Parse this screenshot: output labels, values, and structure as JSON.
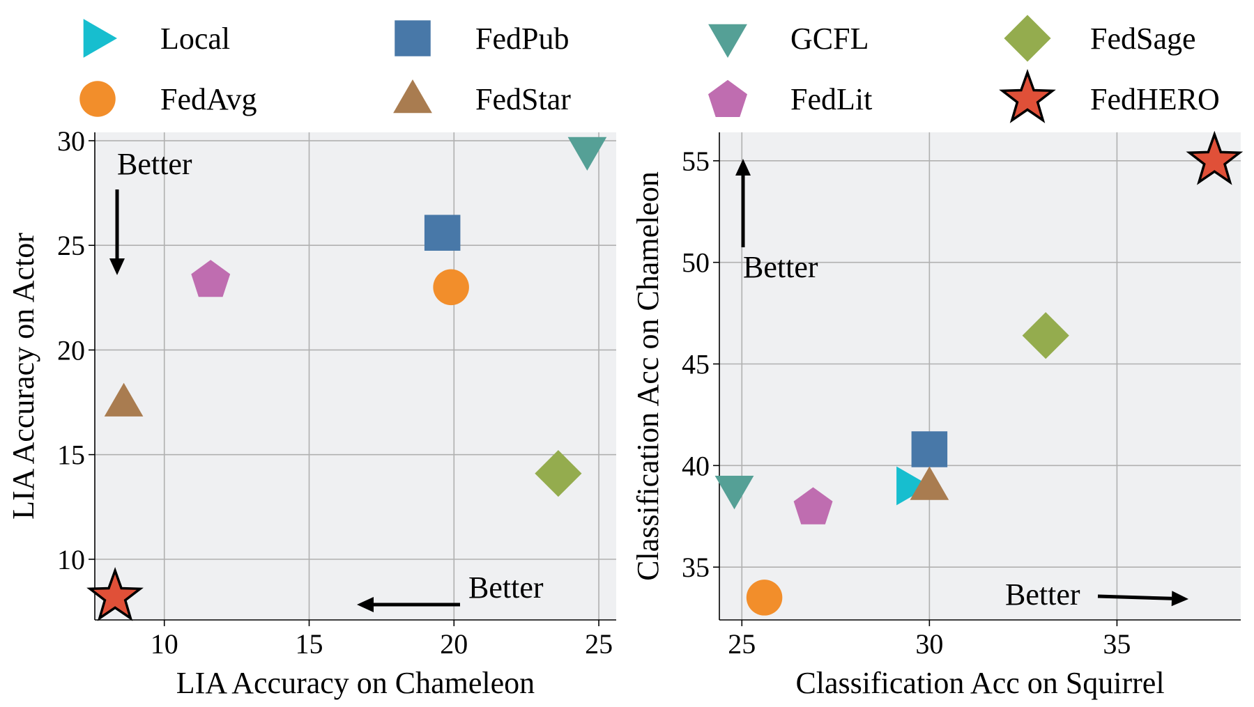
{
  "legend": [
    {
      "name": "Local",
      "marker": "triangle-right",
      "color": "#17becf"
    },
    {
      "name": "FedPub",
      "marker": "square",
      "color": "#4878a8"
    },
    {
      "name": "GCFL",
      "marker": "triangle-down",
      "color": "#55a096"
    },
    {
      "name": "FedSage",
      "marker": "diamond",
      "color": "#94ac4e"
    },
    {
      "name": "FedAvg",
      "marker": "circle",
      "color": "#f28e2b"
    },
    {
      "name": "FedStar",
      "marker": "triangle-up",
      "color": "#a97c50"
    },
    {
      "name": "FedLit",
      "marker": "pentagon",
      "color": "#bf6db0"
    },
    {
      "name": "FedHERO",
      "marker": "star",
      "color": "#e05038"
    }
  ],
  "chart_data": [
    {
      "type": "scatter",
      "xlabel": "LIA Accuracy on Chameleon",
      "ylabel": "LIA Accuracy on Actor",
      "xlim": [
        7.6,
        25.6
      ],
      "ylim": [
        7.1,
        30.4
      ],
      "xticks": [
        "10",
        "15",
        "20",
        "25"
      ],
      "yticks": [
        "10",
        "15",
        "20",
        "25",
        "30"
      ],
      "grid": true,
      "points": [
        {
          "series": "GCFL",
          "x": 24.6,
          "y": 29.5
        },
        {
          "series": "FedPub",
          "x": 19.6,
          "y": 25.6
        },
        {
          "series": "FedLit",
          "x": 11.6,
          "y": 23.4
        },
        {
          "series": "FedAvg",
          "x": 19.9,
          "y": 23.0
        },
        {
          "series": "FedStar",
          "x": 8.6,
          "y": 17.5
        },
        {
          "series": "FedSage",
          "x": 23.6,
          "y": 14.1
        },
        {
          "series": "FedHERO",
          "x": 8.3,
          "y": 8.2
        }
      ],
      "annotations": [
        {
          "text": "Better",
          "arrow": "down",
          "placement": "top-left"
        },
        {
          "text": "Better",
          "arrow": "left",
          "placement": "bottom-right"
        }
      ]
    },
    {
      "type": "scatter",
      "xlabel": "Classification Acc on Squirrel",
      "ylabel": "Classification Acc on Chameleon",
      "xlim": [
        24.4,
        38.3
      ],
      "ylim": [
        32.4,
        56.4
      ],
      "xticks": [
        "25",
        "30",
        "35"
      ],
      "yticks": [
        "35",
        "40",
        "45",
        "50",
        "55"
      ],
      "grid": true,
      "points": [
        {
          "series": "FedHERO",
          "x": 37.6,
          "y": 55.0
        },
        {
          "series": "FedSage",
          "x": 33.1,
          "y": 46.4
        },
        {
          "series": "FedPub",
          "x": 30.0,
          "y": 40.8
        },
        {
          "series": "Local",
          "x": 29.5,
          "y": 39.0
        },
        {
          "series": "FedStar",
          "x": 30.0,
          "y": 39.0
        },
        {
          "series": "GCFL",
          "x": 24.8,
          "y": 38.8
        },
        {
          "series": "FedLit",
          "x": 26.9,
          "y": 38.0
        },
        {
          "series": "FedAvg",
          "x": 25.6,
          "y": 33.5
        }
      ],
      "annotations": [
        {
          "text": "Better",
          "arrow": "up",
          "placement": "top-left"
        },
        {
          "text": "Better",
          "arrow": "right",
          "placement": "bottom-right"
        }
      ]
    }
  ]
}
